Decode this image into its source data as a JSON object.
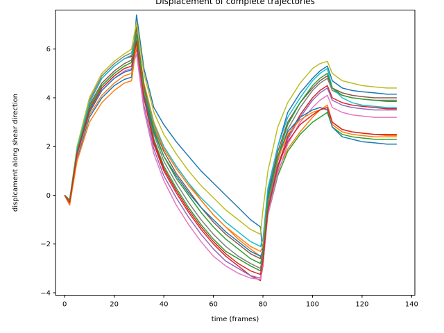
{
  "chart_data": {
    "type": "line",
    "title": "Displacement of complete trajectories",
    "xlabel": "time (frames)",
    "ylabel": "displcament along shear direction",
    "xlim": [
      -3.7,
      141.3
    ],
    "ylim": [
      -4.1,
      7.6
    ],
    "xticks": [
      0,
      20,
      40,
      60,
      80,
      100,
      120,
      140
    ],
    "yticks": [
      -4,
      -2,
      0,
      2,
      4,
      6
    ],
    "grid": false,
    "legend": "none",
    "colors": [
      "#1f77b4",
      "#ff7f0e",
      "#2ca02c",
      "#d62728",
      "#9467bd",
      "#8c564b",
      "#e377c2",
      "#7f7f7f",
      "#bcbd22",
      "#17becf"
    ],
    "x": [
      0,
      2,
      5,
      10,
      15,
      20,
      24,
      27,
      29,
      32,
      36,
      40,
      45,
      50,
      55,
      60,
      65,
      70,
      75,
      79,
      80,
      82,
      86,
      90,
      95,
      100,
      103,
      106,
      108,
      112,
      116,
      120,
      125,
      130,
      134
    ],
    "series": [
      {
        "values": [
          0,
          -0.4,
          1.5,
          3.2,
          4.0,
          4.5,
          4.75,
          4.85,
          7.4,
          5.2,
          3.6,
          2.9,
          2.2,
          1.6,
          1.0,
          0.5,
          0.0,
          -0.5,
          -1.0,
          -1.3,
          -2.5,
          0.2,
          2.0,
          3.4,
          4.2,
          4.8,
          5.1,
          5.3,
          4.7,
          4.4,
          4.3,
          4.25,
          4.2,
          4.15,
          4.15
        ]
      },
      {
        "values": [
          0,
          -0.3,
          1.6,
          3.3,
          4.1,
          4.6,
          4.9,
          5.0,
          6.6,
          4.6,
          3.0,
          2.0,
          1.2,
          0.5,
          -0.2,
          -0.8,
          -1.3,
          -1.8,
          -2.2,
          -2.5,
          -2.8,
          -0.5,
          1.0,
          1.9,
          2.6,
          3.2,
          3.5,
          3.7,
          3.0,
          2.7,
          2.6,
          2.55,
          2.5,
          2.45,
          2.45
        ]
      },
      {
        "values": [
          0,
          -0.2,
          1.8,
          3.6,
          4.5,
          5.0,
          5.3,
          5.45,
          6.9,
          4.2,
          2.3,
          1.2,
          0.3,
          -0.5,
          -1.2,
          -1.8,
          -2.3,
          -2.6,
          -2.9,
          -3.1,
          -2.6,
          -0.8,
          0.8,
          1.8,
          2.5,
          3.0,
          3.2,
          3.4,
          2.8,
          2.5,
          2.4,
          2.35,
          2.3,
          2.3,
          2.3
        ]
      },
      {
        "values": [
          0,
          -0.2,
          1.9,
          3.8,
          4.8,
          5.3,
          5.6,
          5.7,
          6.4,
          4.0,
          2.1,
          1.0,
          0.1,
          -0.7,
          -1.4,
          -2.0,
          -2.5,
          -2.9,
          -3.3,
          -3.5,
          -2.9,
          -0.6,
          1.2,
          2.4,
          3.3,
          4.0,
          4.3,
          4.5,
          4.0,
          3.8,
          3.7,
          3.65,
          3.6,
          3.55,
          3.55
        ]
      },
      {
        "values": [
          0,
          -0.3,
          1.7,
          3.5,
          4.4,
          4.9,
          5.2,
          5.3,
          6.0,
          3.7,
          1.9,
          0.8,
          -0.1,
          -0.9,
          -1.6,
          -2.2,
          -2.7,
          -3.0,
          -3.3,
          -3.4,
          -2.8,
          -0.7,
          1.1,
          2.3,
          3.2,
          3.9,
          4.2,
          4.4,
          3.9,
          3.7,
          3.6,
          3.55,
          3.5,
          3.5,
          3.5
        ]
      },
      {
        "values": [
          0,
          -0.2,
          1.8,
          3.7,
          4.6,
          5.1,
          5.4,
          5.55,
          6.8,
          4.5,
          2.8,
          1.8,
          0.9,
          0.2,
          -0.5,
          -1.1,
          -1.6,
          -2.0,
          -2.4,
          -2.6,
          -2.2,
          0.0,
          1.8,
          3.0,
          3.8,
          4.4,
          4.7,
          4.9,
          4.4,
          4.2,
          4.1,
          4.05,
          4.0,
          4.0,
          4.0
        ]
      },
      {
        "values": [
          0,
          -0.3,
          1.6,
          3.4,
          4.3,
          4.8,
          5.1,
          5.2,
          5.8,
          3.5,
          1.7,
          0.6,
          -0.4,
          -1.2,
          -1.9,
          -2.5,
          -2.9,
          -3.2,
          -3.4,
          -3.45,
          -2.8,
          -0.8,
          0.9,
          2.1,
          3.0,
          3.6,
          3.9,
          4.1,
          3.6,
          3.4,
          3.3,
          3.25,
          3.2,
          3.2,
          3.2
        ]
      },
      {
        "values": [
          0,
          -0.2,
          1.9,
          3.9,
          4.9,
          5.4,
          5.7,
          5.85,
          6.7,
          4.3,
          2.5,
          1.4,
          0.5,
          -0.3,
          -1.0,
          -1.6,
          -2.1,
          -2.5,
          -2.8,
          -3.0,
          -2.5,
          -0.4,
          1.4,
          2.7,
          3.6,
          4.3,
          4.6,
          4.8,
          4.3,
          4.1,
          4.0,
          3.95,
          3.9,
          3.9,
          3.9
        ]
      },
      {
        "values": [
          0,
          -0.2,
          2.0,
          4.0,
          5.0,
          5.5,
          5.8,
          6.0,
          7.1,
          5.0,
          3.4,
          2.5,
          1.7,
          1.0,
          0.4,
          -0.1,
          -0.6,
          -1.0,
          -1.4,
          -1.6,
          -0.6,
          1.0,
          2.8,
          3.8,
          4.6,
          5.2,
          5.4,
          5.5,
          5.0,
          4.7,
          4.6,
          4.5,
          4.45,
          4.4,
          4.4
        ]
      },
      {
        "values": [
          0,
          -0.2,
          1.9,
          3.8,
          4.8,
          5.3,
          5.6,
          5.75,
          6.5,
          4.4,
          2.9,
          2.0,
          1.2,
          0.5,
          -0.1,
          -0.6,
          -1.1,
          -1.5,
          -1.9,
          -2.1,
          -1.8,
          0.3,
          2.0,
          3.2,
          4.0,
          4.7,
          5.0,
          5.2,
          4.4,
          4.0,
          3.8,
          3.7,
          3.65,
          3.6,
          3.6
        ]
      },
      {
        "values": [
          0,
          -0.3,
          1.7,
          3.4,
          4.3,
          4.8,
          5.05,
          5.15,
          6.2,
          4.1,
          2.6,
          1.6,
          0.8,
          0.1,
          -0.5,
          -1.0,
          -1.5,
          -1.9,
          -2.3,
          -2.5,
          -2.3,
          0.0,
          1.6,
          2.6,
          3.2,
          3.5,
          3.6,
          3.5,
          2.8,
          2.4,
          2.3,
          2.2,
          2.15,
          2.1,
          2.1
        ]
      },
      {
        "values": [
          0,
          -0.4,
          1.4,
          3.0,
          3.8,
          4.3,
          4.6,
          4.7,
          6.2,
          4.3,
          2.8,
          1.9,
          1.1,
          0.4,
          -0.2,
          -0.8,
          -1.3,
          -1.7,
          -2.1,
          -2.3,
          -2.1,
          -0.2,
          1.5,
          2.5,
          3.1,
          3.4,
          3.5,
          3.6,
          2.9,
          2.6,
          2.5,
          2.45,
          2.4,
          2.4,
          2.4
        ]
      },
      {
        "values": [
          0,
          -0.2,
          1.8,
          3.6,
          4.5,
          5.0,
          5.3,
          5.45,
          6.6,
          4.4,
          2.7,
          1.6,
          0.7,
          0.0,
          -0.7,
          -1.3,
          -1.8,
          -2.2,
          -2.6,
          -2.8,
          -2.4,
          -0.2,
          1.6,
          2.9,
          3.8,
          4.5,
          4.8,
          5.0,
          4.4,
          4.1,
          4.0,
          3.95,
          3.9,
          3.85,
          3.85
        ]
      },
      {
        "values": [
          0,
          -0.3,
          1.7,
          3.5,
          4.4,
          4.9,
          5.2,
          5.3,
          6.3,
          4.0,
          2.2,
          1.1,
          0.2,
          -0.6,
          -1.3,
          -1.9,
          -2.4,
          -2.8,
          -3.1,
          -3.25,
          -2.7,
          -0.6,
          1.2,
          2.2,
          2.9,
          3.3,
          3.5,
          3.6,
          3.0,
          2.7,
          2.6,
          2.55,
          2.5,
          2.5,
          2.5
        ]
      }
    ]
  }
}
